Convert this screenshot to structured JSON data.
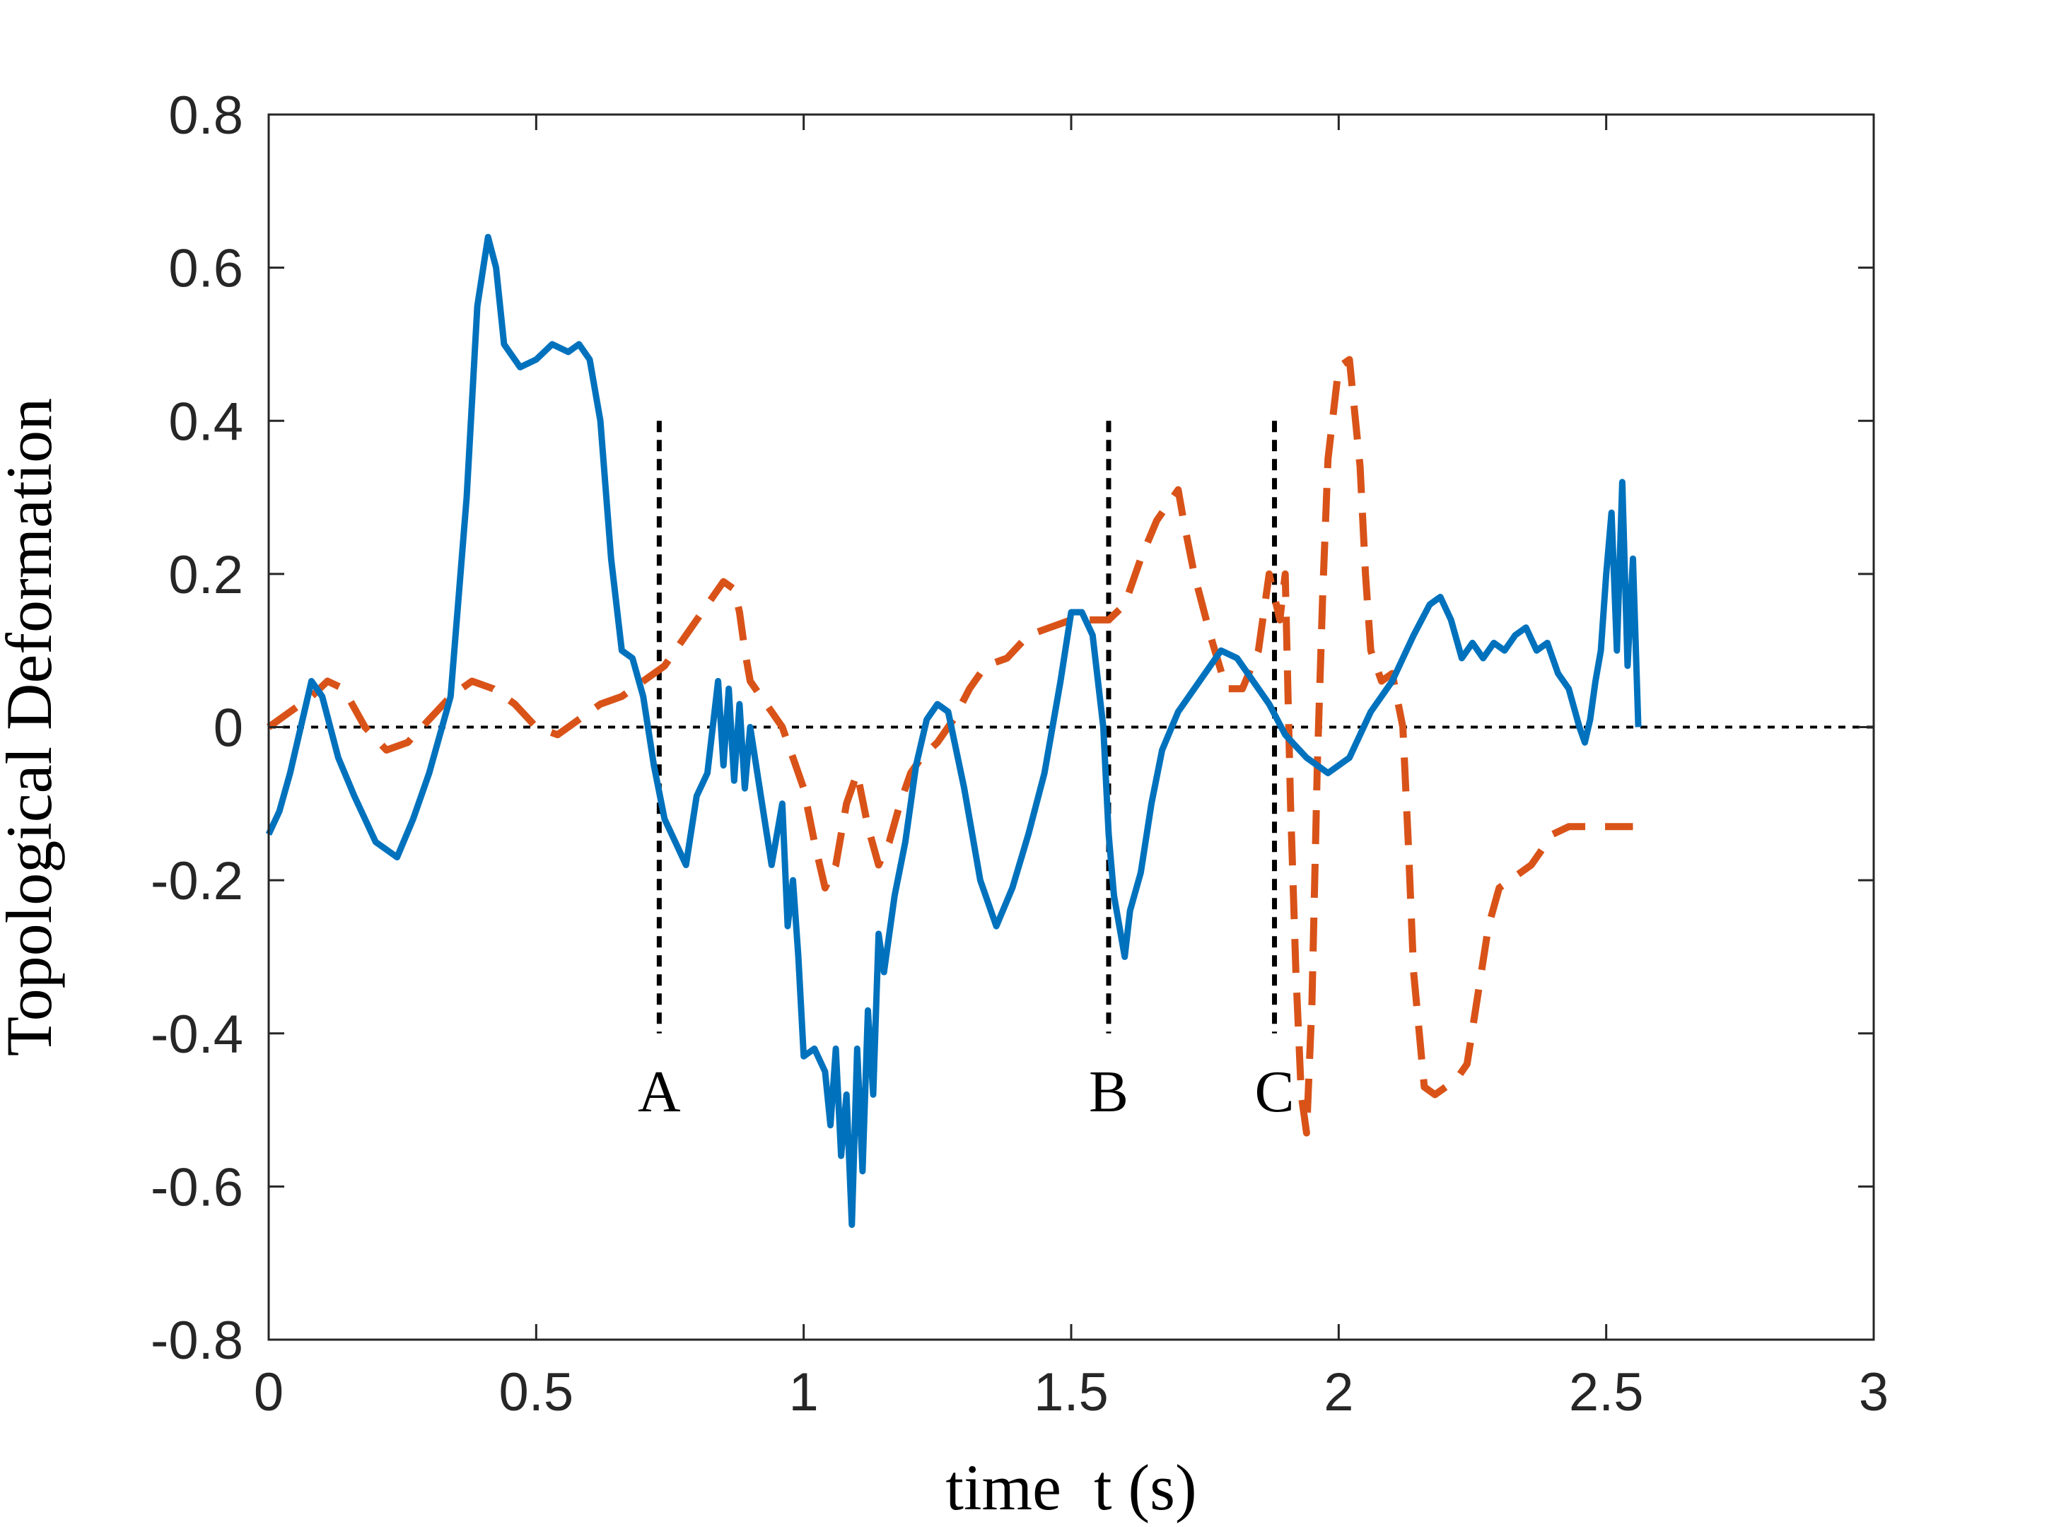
{
  "chart_data": {
    "type": "line",
    "title": "",
    "xlabel": "time  t (s)",
    "ylabel": "Topological Deformation",
    "xlim": [
      0,
      3
    ],
    "ylim": [
      -0.8,
      0.8
    ],
    "x_ticks": [
      0,
      0.5,
      1,
      1.5,
      2,
      2.5,
      3
    ],
    "x_tick_labels": [
      "0",
      "0.5",
      "1",
      "1.5",
      "2",
      "2.5",
      "3"
    ],
    "y_ticks": [
      0.8,
      0.6,
      0.4,
      0.2,
      0,
      -0.2,
      -0.4,
      -0.6,
      -0.8
    ],
    "y_tick_labels": [
      "0.8",
      "0.6",
      "0.4",
      "0.2",
      "0",
      "-0.2",
      "-0.4",
      "-0.6",
      "-0.8"
    ],
    "grid": false,
    "colors": {
      "series_1": "#0072BD",
      "series_2": "#D95319",
      "reference": "#000000",
      "axes": "#262626"
    },
    "reference_line": {
      "y": 0,
      "x_range": [
        0,
        3
      ],
      "style": "dotted"
    },
    "markers": [
      {
        "label": "A",
        "x": 0.73,
        "y_range": [
          -0.4,
          0.4
        ]
      },
      {
        "label": "B",
        "x": 1.57,
        "y_range": [
          -0.4,
          0.4
        ]
      },
      {
        "label": "C",
        "x": 1.88,
        "y_range": [
          -0.4,
          0.4
        ]
      }
    ],
    "series": [
      {
        "name": "solid",
        "style": "solid",
        "x": [
          0,
          0.02,
          0.04,
          0.06,
          0.08,
          0.1,
          0.13,
          0.16,
          0.2,
          0.24,
          0.27,
          0.3,
          0.34,
          0.37,
          0.39,
          0.41,
          0.425,
          0.44,
          0.47,
          0.5,
          0.53,
          0.56,
          0.58,
          0.6,
          0.62,
          0.64,
          0.66,
          0.68,
          0.7,
          0.72,
          0.74,
          0.76,
          0.78,
          0.8,
          0.82,
          0.84,
          0.85,
          0.86,
          0.87,
          0.88,
          0.89,
          0.9,
          0.92,
          0.94,
          0.96,
          0.97,
          0.98,
          0.99,
          1.0,
          1.02,
          1.04,
          1.05,
          1.06,
          1.07,
          1.08,
          1.09,
          1.1,
          1.11,
          1.12,
          1.13,
          1.14,
          1.15,
          1.17,
          1.19,
          1.21,
          1.23,
          1.25,
          1.27,
          1.3,
          1.33,
          1.36,
          1.39,
          1.42,
          1.45,
          1.48,
          1.5,
          1.52,
          1.54,
          1.56,
          1.57,
          1.58,
          1.6,
          1.61,
          1.63,
          1.65,
          1.67,
          1.7,
          1.74,
          1.78,
          1.81,
          1.84,
          1.87,
          1.9,
          1.94,
          1.98,
          2.02,
          2.06,
          2.1,
          2.14,
          2.17,
          2.19,
          2.21,
          2.23,
          2.25,
          2.27,
          2.29,
          2.31,
          2.33,
          2.35,
          2.37,
          2.39,
          2.41,
          2.43,
          2.45,
          2.46,
          2.47,
          2.48,
          2.49,
          2.5,
          2.51,
          2.52,
          2.53,
          2.54,
          2.55,
          2.56
        ],
        "y": [
          -0.14,
          -0.11,
          -0.06,
          0.0,
          0.06,
          0.04,
          -0.04,
          -0.09,
          -0.15,
          -0.17,
          -0.12,
          -0.06,
          0.04,
          0.3,
          0.55,
          0.64,
          0.6,
          0.5,
          0.47,
          0.48,
          0.5,
          0.49,
          0.5,
          0.48,
          0.4,
          0.22,
          0.1,
          0.09,
          0.04,
          -0.05,
          -0.12,
          -0.15,
          -0.18,
          -0.09,
          -0.06,
          0.06,
          -0.05,
          0.05,
          -0.07,
          0.03,
          -0.08,
          0.0,
          -0.09,
          -0.18,
          -0.1,
          -0.26,
          -0.2,
          -0.3,
          -0.43,
          -0.42,
          -0.45,
          -0.52,
          -0.42,
          -0.56,
          -0.48,
          -0.65,
          -0.42,
          -0.58,
          -0.37,
          -0.48,
          -0.27,
          -0.32,
          -0.22,
          -0.15,
          -0.05,
          0.01,
          0.03,
          0.02,
          -0.08,
          -0.2,
          -0.26,
          -0.21,
          -0.14,
          -0.06,
          0.06,
          0.15,
          0.15,
          0.12,
          0.0,
          -0.14,
          -0.22,
          -0.3,
          -0.24,
          -0.19,
          -0.1,
          -0.03,
          0.02,
          0.06,
          0.1,
          0.09,
          0.06,
          0.03,
          -0.01,
          -0.04,
          -0.06,
          -0.04,
          0.02,
          0.06,
          0.12,
          0.16,
          0.17,
          0.14,
          0.09,
          0.11,
          0.09,
          0.11,
          0.1,
          0.12,
          0.13,
          0.1,
          0.11,
          0.07,
          0.05,
          0.0,
          -0.02,
          0.01,
          0.06,
          0.1,
          0.2,
          0.28,
          0.1,
          0.32,
          0.08,
          0.22,
          0.0
        ]
      },
      {
        "name": "dashed",
        "style": "dashed",
        "x": [
          0,
          0.04,
          0.08,
          0.11,
          0.14,
          0.18,
          0.22,
          0.26,
          0.3,
          0.34,
          0.38,
          0.42,
          0.46,
          0.5,
          0.54,
          0.58,
          0.62,
          0.66,
          0.7,
          0.74,
          0.78,
          0.82,
          0.85,
          0.87,
          0.88,
          0.89,
          0.9,
          0.92,
          0.94,
          0.96,
          0.98,
          1.0,
          1.02,
          1.04,
          1.06,
          1.08,
          1.1,
          1.12,
          1.14,
          1.16,
          1.18,
          1.2,
          1.22,
          1.25,
          1.28,
          1.31,
          1.34,
          1.38,
          1.42,
          1.46,
          1.5,
          1.54,
          1.57,
          1.6,
          1.63,
          1.66,
          1.69,
          1.7,
          1.71,
          1.73,
          1.76,
          1.79,
          1.82,
          1.85,
          1.87,
          1.89,
          1.9,
          1.91,
          1.92,
          1.93,
          1.94,
          1.95,
          1.96,
          1.97,
          1.98,
          2.0,
          2.02,
          2.04,
          2.05,
          2.06,
          2.08,
          2.1,
          2.12,
          2.13,
          2.14,
          2.16,
          2.18,
          2.2,
          2.22,
          2.24,
          2.26,
          2.28,
          2.3,
          2.32,
          2.34,
          2.36,
          2.38,
          2.4,
          2.43,
          2.46,
          2.49,
          2.52,
          2.55
        ],
        "y": [
          0.0,
          0.02,
          0.04,
          0.06,
          0.05,
          0.0,
          -0.03,
          -0.02,
          0.01,
          0.04,
          0.06,
          0.05,
          0.03,
          0.0,
          -0.01,
          0.01,
          0.03,
          0.04,
          0.06,
          0.08,
          0.12,
          0.16,
          0.19,
          0.18,
          0.15,
          0.1,
          0.06,
          0.04,
          0.02,
          0.0,
          -0.04,
          -0.08,
          -0.15,
          -0.21,
          -0.18,
          -0.1,
          -0.06,
          -0.13,
          -0.18,
          -0.15,
          -0.1,
          -0.06,
          -0.04,
          -0.02,
          0.01,
          0.05,
          0.08,
          0.09,
          0.12,
          0.13,
          0.14,
          0.14,
          0.14,
          0.16,
          0.22,
          0.27,
          0.3,
          0.31,
          0.27,
          0.2,
          0.12,
          0.05,
          0.05,
          0.1,
          0.2,
          0.14,
          0.2,
          -0.1,
          -0.32,
          -0.48,
          -0.53,
          -0.36,
          -0.05,
          0.17,
          0.35,
          0.47,
          0.48,
          0.34,
          0.2,
          0.1,
          0.06,
          0.07,
          0.0,
          -0.15,
          -0.32,
          -0.47,
          -0.48,
          -0.47,
          -0.46,
          -0.44,
          -0.35,
          -0.26,
          -0.21,
          -0.2,
          -0.19,
          -0.18,
          -0.16,
          -0.14,
          -0.13,
          -0.13,
          -0.13,
          -0.13,
          -0.13
        ]
      }
    ]
  }
}
